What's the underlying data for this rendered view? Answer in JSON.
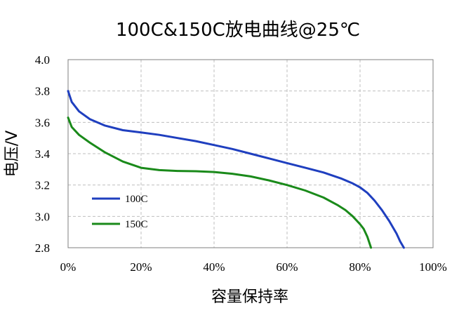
{
  "chart_data": {
    "type": "line",
    "title": "100C&150C放电曲线@25℃",
    "xlabel": "容量保持率",
    "ylabel": "电压/V",
    "xlim": [
      0,
      100
    ],
    "ylim": [
      2.8,
      4.0
    ],
    "x_ticks": [
      "0%",
      "20%",
      "40%",
      "60%",
      "80%",
      "100%"
    ],
    "y_ticks": [
      "2.8",
      "3.0",
      "3.2",
      "3.4",
      "3.6",
      "3.8",
      "4.0"
    ],
    "grid": true,
    "legend_position": "lower-left",
    "series": [
      {
        "name": "100C",
        "color": "#1f3fbf",
        "x": [
          0,
          1,
          3,
          6,
          10,
          15,
          20,
          25,
          30,
          35,
          40,
          45,
          50,
          55,
          60,
          65,
          70,
          75,
          78,
          80,
          82,
          84,
          86,
          88,
          90,
          91,
          92
        ],
        "y": [
          3.8,
          3.73,
          3.67,
          3.62,
          3.58,
          3.55,
          3.535,
          3.52,
          3.5,
          3.48,
          3.455,
          3.43,
          3.4,
          3.37,
          3.34,
          3.31,
          3.28,
          3.24,
          3.21,
          3.185,
          3.15,
          3.1,
          3.04,
          2.97,
          2.89,
          2.84,
          2.8
        ]
      },
      {
        "name": "150C",
        "color": "#1a8a1a",
        "x": [
          0,
          1,
          3,
          6,
          10,
          15,
          20,
          25,
          30,
          35,
          40,
          45,
          50,
          55,
          60,
          65,
          70,
          74,
          76,
          78,
          80,
          81,
          82,
          83
        ],
        "y": [
          3.63,
          3.57,
          3.52,
          3.47,
          3.41,
          3.35,
          3.31,
          3.295,
          3.29,
          3.288,
          3.283,
          3.272,
          3.255,
          3.23,
          3.2,
          3.165,
          3.12,
          3.07,
          3.04,
          3.0,
          2.95,
          2.92,
          2.87,
          2.8
        ]
      }
    ]
  }
}
